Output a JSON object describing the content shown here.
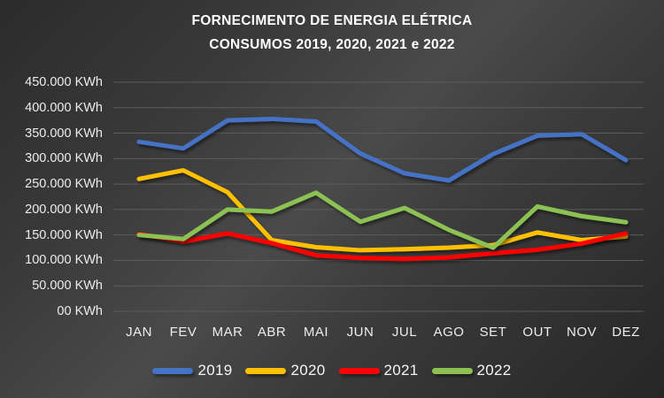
{
  "title": {
    "line1": "FORNECIMENTO DE ENERGIA ELÉTRICA",
    "line2": "CONSUMOS 2019, 2020, 2021 e 2022"
  },
  "chart_data": {
    "type": "line",
    "categories": [
      "JAN",
      "FEV",
      "MAR",
      "ABR",
      "MAI",
      "JUN",
      "JUL",
      "AGO",
      "SET",
      "OUT",
      "NOV",
      "DEZ"
    ],
    "series": [
      {
        "name": "2019",
        "color": "#4472C4",
        "values": [
          333000,
          320000,
          375000,
          378000,
          373000,
          310000,
          271000,
          257000,
          309000,
          345000,
          348000,
          297000
        ]
      },
      {
        "name": "2020",
        "color": "#FFC000",
        "values": [
          260000,
          277000,
          234000,
          140000,
          126000,
          120000,
          122000,
          125000,
          130000,
          155000,
          140000,
          147000
        ]
      },
      {
        "name": "2021",
        "color": "#FF0000",
        "values": [
          152000,
          137000,
          153000,
          134000,
          110000,
          105000,
          103000,
          106000,
          114000,
          121000,
          133000,
          153000
        ]
      },
      {
        "name": "2022",
        "color": "#8CC152",
        "values": [
          150000,
          142000,
          200000,
          196000,
          233000,
          176000,
          203000,
          160000,
          125000,
          206000,
          187000,
          175000
        ]
      }
    ],
    "y_ticks": [
      "450.000 KWh",
      "400.000 KWh",
      "350.000 KWh",
      "300.000 KWh",
      "250.000 KWh",
      "200.000 KWh",
      "150.000 KWh",
      "100.000 KWh",
      "50.000 KWh",
      "00 KWh"
    ],
    "ylim": [
      0,
      450000
    ],
    "unit": "KWh",
    "grid": true,
    "gridline_color": "#5c5c5c",
    "text_color": "#ededed",
    "legend_position": "bottom"
  }
}
